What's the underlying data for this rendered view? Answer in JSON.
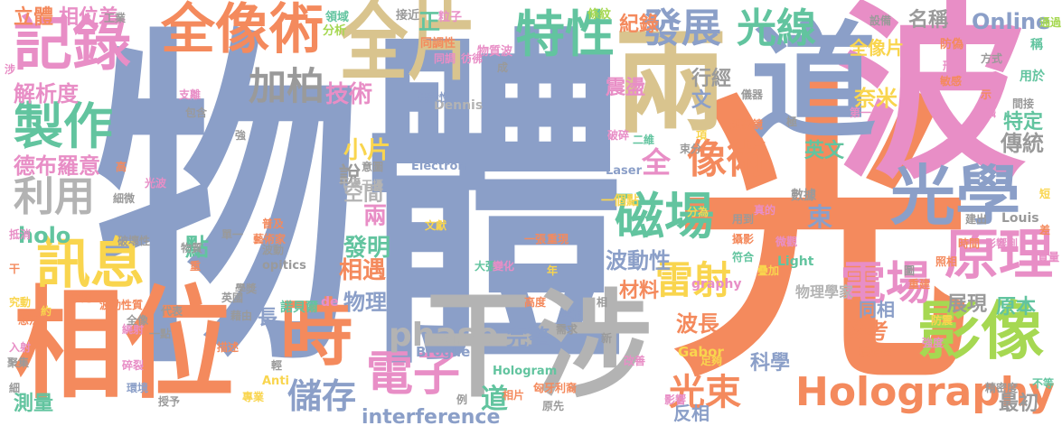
{
  "words": [
    {
      "t": "物體"
    },
    {
      "t": "光"
    },
    {
      "t": "波"
    },
    {
      "t": "道"
    },
    {
      "t": "兩"
    },
    {
      "t": "相位"
    },
    {
      "t": "干涉"
    },
    {
      "t": "時"
    },
    {
      "t": "全像術"
    },
    {
      "t": "全片"
    },
    {
      "t": "光學"
    },
    {
      "t": "影像"
    },
    {
      "t": "原理"
    },
    {
      "t": "記錄"
    },
    {
      "t": "製作"
    },
    {
      "t": "訊息"
    },
    {
      "t": "特性"
    },
    {
      "t": "光線"
    },
    {
      "t": "發展"
    },
    {
      "t": "磁場"
    },
    {
      "t": "電場"
    },
    {
      "t": "Holography"
    },
    {
      "t": "電子"
    },
    {
      "t": "像術"
    },
    {
      "t": "利用"
    },
    {
      "t": "加柏"
    },
    {
      "t": "雷射"
    },
    {
      "t": "光束"
    },
    {
      "t": "儲存"
    },
    {
      "t": "phase"
    },
    {
      "t": "解析度"
    },
    {
      "t": "德布羅意"
    },
    {
      "t": "立體"
    },
    {
      "t": "相位差"
    },
    {
      "t": "技術"
    },
    {
      "t": "小片"
    },
    {
      "t": "發明"
    },
    {
      "t": "相遇"
    },
    {
      "t": "holo"
    },
    {
      "t": "Online"
    },
    {
      "t": "名稱"
    },
    {
      "t": "紀錄"
    },
    {
      "t": "材料"
    },
    {
      "t": "波動性"
    },
    {
      "t": "完整"
    },
    {
      "t": "科學"
    },
    {
      "t": "波長"
    },
    {
      "t": "參考"
    },
    {
      "t": "英文"
    },
    {
      "t": "傳統"
    },
    {
      "t": "特定"
    },
    {
      "t": "展現"
    },
    {
      "t": "原本"
    },
    {
      "t": "最初"
    },
    {
      "t": "同相"
    },
    {
      "t": "奈米"
    },
    {
      "t": "全像片"
    },
    {
      "t": "物理"
    },
    {
      "t": "正"
    },
    {
      "t": "點"
    },
    {
      "t": "全"
    },
    {
      "t": "束"
    },
    {
      "t": "道"
    },
    {
      "t": "兩"
    },
    {
      "t": "文"
    },
    {
      "t": "說"
    },
    {
      "t": "空間"
    },
    {
      "t": "震盪"
    },
    {
      "t": "行經"
    },
    {
      "t": "長"
    },
    {
      "t": "interference"
    },
    {
      "t": "測量"
    },
    {
      "t": "反相"
    },
    {
      "t": "諾貝爾"
    },
    {
      "t": "物理學家"
    },
    {
      "t": "一個點"
    },
    {
      "t": "數據"
    },
    {
      "t": "真的"
    },
    {
      "t": "Dennis"
    },
    {
      "t": "Electron"
    },
    {
      "t": "Laser"
    },
    {
      "t": "Hologram"
    },
    {
      "t": "Broglie"
    },
    {
      "t": "Gabor"
    },
    {
      "t": "Louis"
    },
    {
      "t": "Light"
    },
    {
      "t": "opitics"
    },
    {
      "t": "graphy"
    },
    {
      "t": "Anti"
    },
    {
      "t": "de"
    },
    {
      "t": "條紋"
    },
    {
      "t": "領域"
    },
    {
      "t": "接近"
    },
    {
      "t": "粒子"
    },
    {
      "t": "同調性"
    },
    {
      "t": "物質波"
    },
    {
      "t": "分析"
    },
    {
      "t": "設備"
    },
    {
      "t": "防偽"
    },
    {
      "t": "形狀"
    },
    {
      "t": "敏感"
    },
    {
      "t": "通過"
    },
    {
      "t": "方式"
    },
    {
      "t": "稱"
    },
    {
      "t": "用於"
    },
    {
      "t": "間接"
    },
    {
      "t": "拍攝"
    },
    {
      "t": "示"
    },
    {
      "t": "短"
    },
    {
      "t": "差"
    },
    {
      "t": "建出"
    },
    {
      "t": "影響到"
    },
    {
      "t": "照相"
    },
    {
      "t": "時間"
    },
    {
      "t": "質量"
    },
    {
      "t": "精密度"
    },
    {
      "t": "不等"
    },
    {
      "t": "穩定性"
    },
    {
      "t": "強度"
    },
    {
      "t": "防震"
    },
    {
      "t": "重建"
    },
    {
      "t": "疊加"
    },
    {
      "t": "微觀"
    },
    {
      "t": "攝影"
    },
    {
      "t": "符合"
    },
    {
      "t": "用到"
    },
    {
      "t": "分為"
    },
    {
      "t": "束分"
    },
    {
      "t": "二維"
    },
    {
      "t": "破碎"
    },
    {
      "t": "項"
    },
    {
      "t": "儀器"
    },
    {
      "t": "第一"
    },
    {
      "t": "顯微鏡"
    },
    {
      "t": "足夠"
    },
    {
      "t": "匈牙利裔"
    },
    {
      "t": "改善"
    },
    {
      "t": "新"
    },
    {
      "t": "相片"
    },
    {
      "t": "原先"
    },
    {
      "t": "影響"
    },
    {
      "t": "字根"
    },
    {
      "t": "需求"
    },
    {
      "t": "高度"
    },
    {
      "t": "相"
    },
    {
      "t": "例"
    },
    {
      "t": "大張"
    },
    {
      "t": "年"
    },
    {
      "t": "變化"
    },
    {
      "t": "一張"
    },
    {
      "t": "重現"
    },
    {
      "t": "文獻"
    },
    {
      "t": "意圖"
    },
    {
      "t": "干擾"
    },
    {
      "t": "成"
    },
    {
      "t": "彷彿"
    },
    {
      "t": "建設性"
    },
    {
      "t": "同調"
    },
    {
      "t": "專業"
    },
    {
      "t": "授予"
    },
    {
      "t": "學獎"
    },
    {
      "t": "波動"
    },
    {
      "t": "藝術家"
    },
    {
      "t": "普及"
    },
    {
      "t": "單一"
    },
    {
      "t": "物質"
    },
    {
      "t": "重"
    },
    {
      "t": "英國"
    },
    {
      "t": "藉由"
    },
    {
      "t": "描述"
    },
    {
      "t": "輕"
    },
    {
      "t": "碎裂"
    },
    {
      "t": "環境"
    },
    {
      "t": "一點"
    },
    {
      "t": "繞射"
    },
    {
      "t": "代表"
    },
    {
      "t": "波動性質"
    },
    {
      "t": "字尾"
    },
    {
      "t": "想法"
    },
    {
      "t": "約"
    },
    {
      "t": "究動"
    },
    {
      "t": "干"
    },
    {
      "t": "抵消"
    },
    {
      "t": "破壞性"
    },
    {
      "t": "細微"
    },
    {
      "t": "光波"
    },
    {
      "t": "干優"
    },
    {
      "t": "高"
    },
    {
      "t": "強"
    },
    {
      "t": "包含"
    },
    {
      "t": "支離"
    },
    {
      "t": "工業"
    },
    {
      "t": "涉"
    },
    {
      "t": "入射"
    },
    {
      "t": "聚集"
    },
    {
      "t": "細"
    },
    {
      "t": "全像"
    },
    {
      "t": "極"
    },
    {
      "t": "圖"
    }
  ]
}
